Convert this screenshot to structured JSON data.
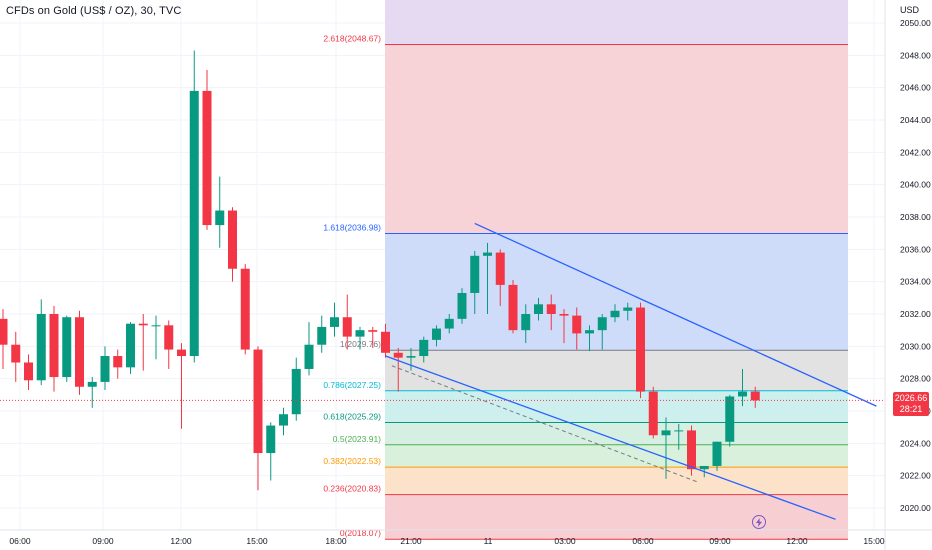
{
  "header": {
    "title": "CFDs on Gold (US$ / OZ), 30, TVC",
    "currency": "USD"
  },
  "price_badge": {
    "price": "2026.66",
    "countdown": "28:21"
  },
  "replay_icon": "lightning-icon",
  "colors": {
    "up": "#089981",
    "down": "#f23645",
    "trendline": "#2962ff",
    "current_price": "#f23645"
  },
  "chart_data": {
    "type": "candlestick",
    "title": "CFDs on Gold (US$ / OZ), 30, TVC",
    "ylabel": "USD",
    "ylim": [
      2019,
      2051
    ],
    "y_ticks": [
      2020,
      2022,
      2024,
      2026,
      2028,
      2030,
      2032,
      2034,
      2036,
      2038,
      2040,
      2042,
      2044,
      2046,
      2048,
      2050
    ],
    "x_ticks": [
      "06:00",
      "09:00",
      "12:00",
      "15:00",
      "18:00",
      "21:00",
      "11",
      "03:00",
      "06:00",
      "09:00",
      "12:00",
      "15:00"
    ],
    "grid": true,
    "current_price": 2026.66,
    "candles": [
      {
        "o": 2031.7,
        "h": 2032.3,
        "l": 2028.6,
        "c": 2030.1
      },
      {
        "o": 2030.1,
        "h": 2030.9,
        "l": 2027.8,
        "c": 2029.0
      },
      {
        "o": 2029.0,
        "h": 2029.5,
        "l": 2027.3,
        "c": 2027.9
      },
      {
        "o": 2027.9,
        "h": 2032.9,
        "l": 2027.6,
        "c": 2032.0
      },
      {
        "o": 2032.0,
        "h": 2032.5,
        "l": 2027.2,
        "c": 2028.1
      },
      {
        "o": 2028.1,
        "h": 2031.9,
        "l": 2027.8,
        "c": 2031.8
      },
      {
        "o": 2031.8,
        "h": 2032.2,
        "l": 2027.0,
        "c": 2027.5
      },
      {
        "o": 2027.5,
        "h": 2028.1,
        "l": 2026.2,
        "c": 2027.8
      },
      {
        "o": 2027.8,
        "h": 2030.0,
        "l": 2027.3,
        "c": 2029.4
      },
      {
        "o": 2029.4,
        "h": 2029.8,
        "l": 2028.0,
        "c": 2028.7
      },
      {
        "o": 2028.7,
        "h": 2031.5,
        "l": 2028.3,
        "c": 2031.4
      },
      {
        "o": 2031.4,
        "h": 2032.0,
        "l": 2028.5,
        "c": 2031.3
      },
      {
        "o": 2031.3,
        "h": 2031.9,
        "l": 2029.2,
        "c": 2031.3
      },
      {
        "o": 2031.3,
        "h": 2031.6,
        "l": 2028.6,
        "c": 2029.8
      },
      {
        "o": 2029.8,
        "h": 2030.2,
        "l": 2024.9,
        "c": 2029.4
      },
      {
        "o": 2029.4,
        "h": 2048.3,
        "l": 2029.0,
        "c": 2045.8
      },
      {
        "o": 2045.8,
        "h": 2047.1,
        "l": 2037.2,
        "c": 2037.5
      },
      {
        "o": 2037.5,
        "h": 2040.5,
        "l": 2036.1,
        "c": 2038.4
      },
      {
        "o": 2038.4,
        "h": 2038.6,
        "l": 2034.0,
        "c": 2034.8
      },
      {
        "o": 2034.8,
        "h": 2035.1,
        "l": 2029.5,
        "c": 2029.8
      },
      {
        "o": 2029.8,
        "h": 2030.0,
        "l": 2021.1,
        "c": 2023.4
      },
      {
        "o": 2023.4,
        "h": 2025.3,
        "l": 2021.7,
        "c": 2025.1
      },
      {
        "o": 2025.1,
        "h": 2026.2,
        "l": 2024.5,
        "c": 2025.8
      },
      {
        "o": 2025.8,
        "h": 2029.3,
        "l": 2025.4,
        "c": 2028.6
      },
      {
        "o": 2028.6,
        "h": 2031.5,
        "l": 2028.2,
        "c": 2030.1
      },
      {
        "o": 2030.1,
        "h": 2031.9,
        "l": 2029.6,
        "c": 2031.2
      },
      {
        "o": 2031.2,
        "h": 2032.7,
        "l": 2030.6,
        "c": 2031.8
      },
      {
        "o": 2031.8,
        "h": 2033.2,
        "l": 2029.8,
        "c": 2030.6
      },
      {
        "o": 2030.6,
        "h": 2031.2,
        "l": 2029.8,
        "c": 2031.0
      },
      {
        "o": 2031.0,
        "h": 2031.2,
        "l": 2029.9,
        "c": 2030.9
      },
      {
        "o": 2030.9,
        "h": 2031.4,
        "l": 2029.3,
        "c": 2029.6
      },
      {
        "o": 2029.6,
        "h": 2029.9,
        "l": 2027.2,
        "c": 2029.3
      },
      {
        "o": 2029.3,
        "h": 2029.9,
        "l": 2028.5,
        "c": 2029.4
      },
      {
        "o": 2029.4,
        "h": 2030.6,
        "l": 2029.0,
        "c": 2030.4
      },
      {
        "o": 2030.4,
        "h": 2031.3,
        "l": 2030.0,
        "c": 2031.1
      },
      {
        "o": 2031.1,
        "h": 2032.0,
        "l": 2030.8,
        "c": 2031.7
      },
      {
        "o": 2031.7,
        "h": 2033.6,
        "l": 2031.4,
        "c": 2033.3
      },
      {
        "o": 2033.3,
        "h": 2035.9,
        "l": 2032.0,
        "c": 2035.6
      },
      {
        "o": 2035.6,
        "h": 2036.4,
        "l": 2032.0,
        "c": 2035.8
      },
      {
        "o": 2035.8,
        "h": 2036.0,
        "l": 2032.5,
        "c": 2033.8
      },
      {
        "o": 2033.8,
        "h": 2034.1,
        "l": 2030.8,
        "c": 2031.0
      },
      {
        "o": 2031.0,
        "h": 2032.6,
        "l": 2030.2,
        "c": 2032.0
      },
      {
        "o": 2032.0,
        "h": 2033.0,
        "l": 2031.6,
        "c": 2032.6
      },
      {
        "o": 2032.6,
        "h": 2033.2,
        "l": 2031.0,
        "c": 2032.0
      },
      {
        "o": 2032.0,
        "h": 2032.3,
        "l": 2030.2,
        "c": 2031.9
      },
      {
        "o": 2031.9,
        "h": 2032.4,
        "l": 2029.8,
        "c": 2030.8
      },
      {
        "o": 2030.8,
        "h": 2031.3,
        "l": 2029.7,
        "c": 2031.0
      },
      {
        "o": 2031.0,
        "h": 2032.0,
        "l": 2029.8,
        "c": 2031.8
      },
      {
        "o": 2031.8,
        "h": 2032.6,
        "l": 2031.5,
        "c": 2032.2
      },
      {
        "o": 2032.2,
        "h": 2032.7,
        "l": 2031.6,
        "c": 2032.4
      },
      {
        "o": 2032.4,
        "h": 2032.7,
        "l": 2026.8,
        "c": 2027.2
      },
      {
        "o": 2027.2,
        "h": 2027.5,
        "l": 2024.3,
        "c": 2024.5
      },
      {
        "o": 2024.5,
        "h": 2025.6,
        "l": 2021.8,
        "c": 2024.8
      },
      {
        "o": 2024.8,
        "h": 2025.2,
        "l": 2023.6,
        "c": 2024.8
      },
      {
        "o": 2024.8,
        "h": 2025.1,
        "l": 2022.0,
        "c": 2022.4
      },
      {
        "o": 2022.4,
        "h": 2022.6,
        "l": 2021.9,
        "c": 2022.6
      },
      {
        "o": 2022.6,
        "h": 2024.1,
        "l": 2022.3,
        "c": 2024.1
      },
      {
        "o": 2024.1,
        "h": 2027.0,
        "l": 2023.8,
        "c": 2026.9
      },
      {
        "o": 2026.9,
        "h": 2028.6,
        "l": 2026.3,
        "c": 2027.2
      },
      {
        "o": 2027.2,
        "h": 2027.5,
        "l": 2026.2,
        "c": 2026.66
      }
    ],
    "fib_levels": [
      {
        "label": "0(2018.07)",
        "ratio": 0,
        "price": 2018.07,
        "color": "#f23645",
        "fill": "#f7cfd3"
      },
      {
        "label": "0.236(2020.83)",
        "ratio": 0.236,
        "price": 2020.83,
        "color": "#f23645",
        "fill": "#fbe2c8"
      },
      {
        "label": "0.382(2022.53)",
        "ratio": 0.382,
        "price": 2022.53,
        "color": "#ff9800",
        "fill": "#d9f0dc"
      },
      {
        "label": "0.5(2023.91)",
        "ratio": 0.5,
        "price": 2023.91,
        "color": "#4caf50",
        "fill": "#d6efe3"
      },
      {
        "label": "0.618(2025.29)",
        "ratio": 0.618,
        "price": 2025.29,
        "color": "#089981",
        "fill": "#cdf0ef"
      },
      {
        "label": "0.786(2027.25)",
        "ratio": 0.786,
        "price": 2027.25,
        "color": "#00bcd4",
        "fill": "#e2e2e2"
      },
      {
        "label": "1(2029.76)",
        "ratio": 1,
        "price": 2029.76,
        "color": "#787b86",
        "fill": "#cfdcf9"
      },
      {
        "label": "1.618(2036.98)",
        "ratio": 1.618,
        "price": 2036.98,
        "color": "#2962ff",
        "fill": "#f7d2d6"
      },
      {
        "label": "2.618(2048.67)",
        "ratio": 2.618,
        "price": 2048.67,
        "color": "#f23645",
        "fill": "#e6daf2"
      }
    ],
    "trendlines": [
      {
        "from": {
          "candle": 37.0,
          "price": 2037.6
        },
        "to": {
          "candle": 68.5,
          "price": 2026.3
        },
        "style": "solid"
      },
      {
        "from": {
          "candle": 30.0,
          "price": 2029.4
        },
        "to": {
          "candle": 65.3,
          "price": 2019.3
        },
        "style": "solid"
      },
      {
        "from": {
          "candle": 30.5,
          "price": 2028.8
        },
        "to": {
          "candle": 54.5,
          "price": 2021.6
        },
        "style": "dashed"
      }
    ]
  }
}
